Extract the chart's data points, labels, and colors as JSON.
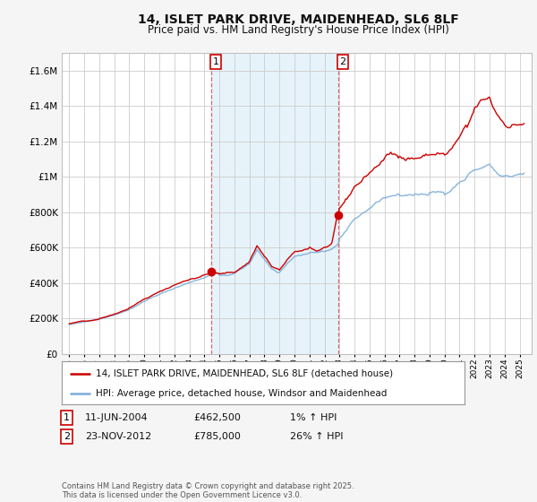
{
  "title": "14, ISLET PARK DRIVE, MAIDENHEAD, SL6 8LF",
  "subtitle": "Price paid vs. HM Land Registry's House Price Index (HPI)",
  "legend_label_red": "14, ISLET PARK DRIVE, MAIDENHEAD, SL6 8LF (detached house)",
  "legend_label_blue": "HPI: Average price, detached house, Windsor and Maidenhead",
  "sale1_date": "11-JUN-2004",
  "sale1_price": "£462,500",
  "sale1_hpi": "1% ↑ HPI",
  "sale2_date": "23-NOV-2012",
  "sale2_price": "£785,000",
  "sale2_hpi": "26% ↑ HPI",
  "footer": "Contains HM Land Registry data © Crown copyright and database right 2025.\nThis data is licensed under the Open Government Licence v3.0.",
  "ylim": [
    0,
    1700000
  ],
  "yticks": [
    0,
    200000,
    400000,
    600000,
    800000,
    1000000,
    1200000,
    1400000,
    1600000
  ],
  "bg_color": "#f5f5f5",
  "plot_bg": "#ffffff",
  "red_color": "#cc0000",
  "blue_color": "#7aadda",
  "sale1_x": 2004.44,
  "sale1_y": 462500,
  "sale2_x": 2012.9,
  "sale2_y": 785000,
  "highlight_xmin": 2004.44,
  "highlight_xmax": 2012.9,
  "xlim_left": 1994.5,
  "xlim_right": 2025.8
}
